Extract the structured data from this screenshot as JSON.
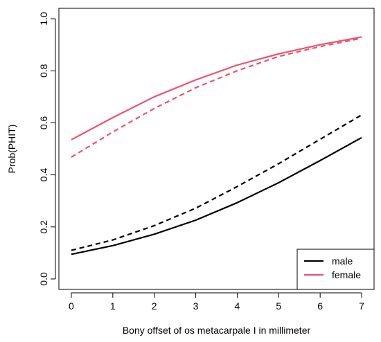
{
  "chart_data": {
    "type": "line",
    "title": "",
    "xlabel": "Bony offset of os metacarpale I in millimeter",
    "ylabel": "Prob(PHIT)",
    "xlim": [
      -0.3,
      7.3
    ],
    "ylim": [
      -0.04,
      1.04
    ],
    "xticks": [
      0,
      1,
      2,
      3,
      4,
      5,
      6,
      7
    ],
    "yticks": [
      0.0,
      0.2,
      0.4,
      0.6,
      0.8,
      1.0
    ],
    "xtick_labels": [
      "0",
      "1",
      "2",
      "3",
      "4",
      "5",
      "6",
      "7"
    ],
    "ytick_labels": [
      "0.0",
      "0.2",
      "0.4",
      "0.6",
      "0.8",
      "1.0"
    ],
    "grid": false,
    "legend_position": "bottom-right",
    "x": [
      0,
      1,
      2,
      3,
      4,
      5,
      6,
      7
    ],
    "series": [
      {
        "name": "male",
        "style": "solid",
        "color": "#000000",
        "values": [
          0.095,
          0.128,
          0.172,
          0.226,
          0.293,
          0.37,
          0.455,
          0.543
        ]
      },
      {
        "name": "male",
        "style": "dashed",
        "color": "#000000",
        "values": [
          0.11,
          0.15,
          0.205,
          0.272,
          0.355,
          0.443,
          0.537,
          0.63
        ],
        "legend": false
      },
      {
        "name": "female",
        "style": "solid",
        "color": "#F0506E",
        "values": [
          0.535,
          0.62,
          0.7,
          0.765,
          0.822,
          0.865,
          0.9,
          0.93
        ]
      },
      {
        "name": "female",
        "style": "dashed",
        "color": "#F0506E",
        "values": [
          0.468,
          0.565,
          0.655,
          0.735,
          0.8,
          0.855,
          0.893,
          0.925
        ],
        "legend": false
      }
    ]
  }
}
